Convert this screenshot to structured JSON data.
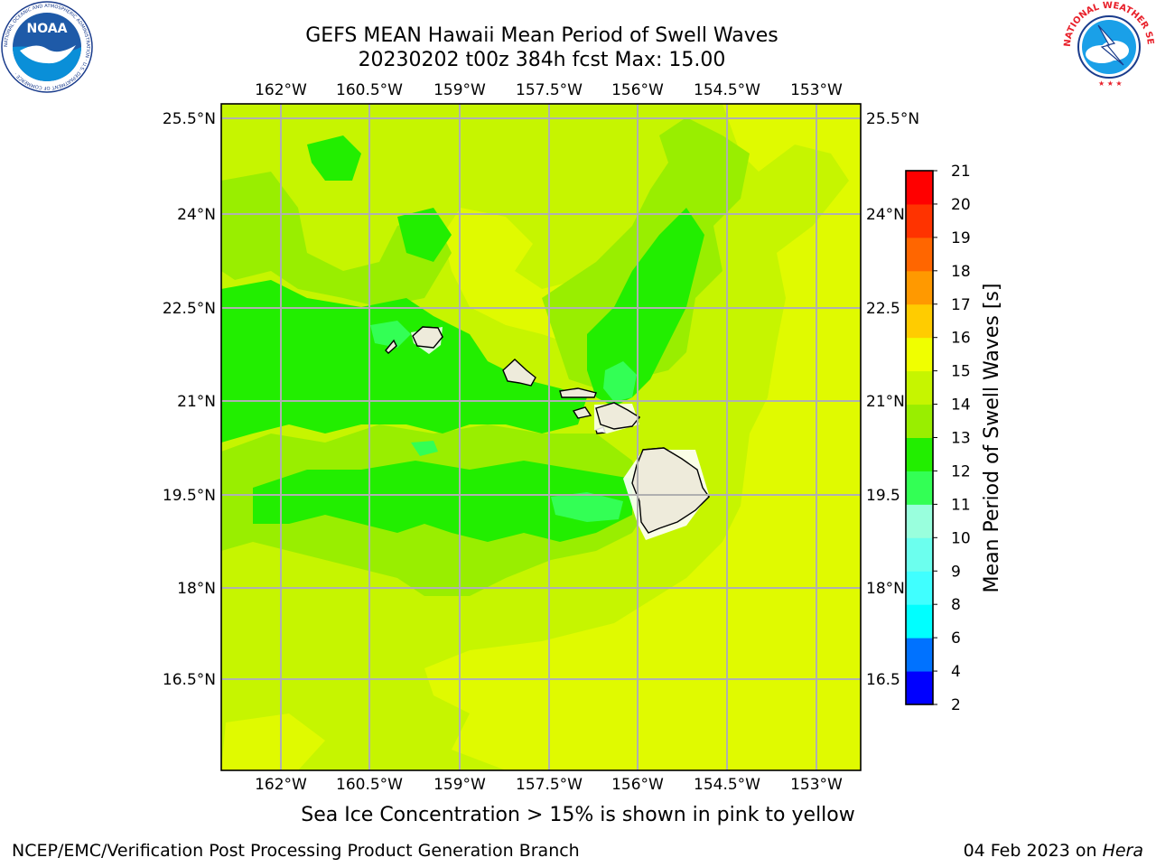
{
  "title": {
    "line1": "GEFS MEAN Hawaii Mean Period of Swell Waves",
    "line2": "20230202 t00z 384h fcst   Max: 15.00"
  },
  "map": {
    "lon_labels": [
      "162°W",
      "160.5°W",
      "159°W",
      "157.5°W",
      "156°W",
      "154.5°W",
      "153°W"
    ],
    "lat_labels": [
      "25.5°N",
      "24°N",
      "22.5°N",
      "21°N",
      "19.5°N",
      "18°N",
      "16.5°N"
    ],
    "lat_labels_right": [
      "25.5°N",
      "24°N",
      "22.5",
      "21°N",
      "19.5",
      "18°N",
      "16.5"
    ],
    "background_color": "#c6f500",
    "field_colors": {
      "c10_11": "#33ff55",
      "c11_12": "#22ee00",
      "c12_13": "#99ee00",
      "c13_14": "#c6f500",
      "c14_15": "#e0fa00"
    },
    "land_color": "#eeebdb"
  },
  "colorbar": {
    "title": "Mean Period of Swell Waves [s]",
    "levels": [
      "2",
      "4",
      "6",
      "8",
      "9",
      "10",
      "11",
      "12",
      "13",
      "14",
      "15",
      "16",
      "17",
      "18",
      "19",
      "20",
      "21"
    ],
    "colors": [
      "#0000ff",
      "#0072ff",
      "#00ffff",
      "#40ffff",
      "#6cffee",
      "#99ffdd",
      "#33ff55",
      "#22ee00",
      "#99ee00",
      "#c6f500",
      "#f0ff00",
      "#ffcc00",
      "#ff9900",
      "#ff6600",
      "#ff3300",
      "#ff0000"
    ]
  },
  "note": "Sea Ice Concentration > 15% is shown in pink to yellow",
  "footer": {
    "left": "NCEP/EMC/Verification Post Processing Product Generation Branch",
    "date": "04 Feb 2023 on ",
    "machine": "Hera"
  },
  "logos": {
    "noaa_text": "NOAA",
    "noaa_ring": "NATIONAL OCEANIC AND ATMOSPHERIC ADMINISTRATION · U.S. DEPARTMENT OF COMMERCE ·",
    "nws_ring": "NATIONAL WEATHER SERVICE"
  }
}
